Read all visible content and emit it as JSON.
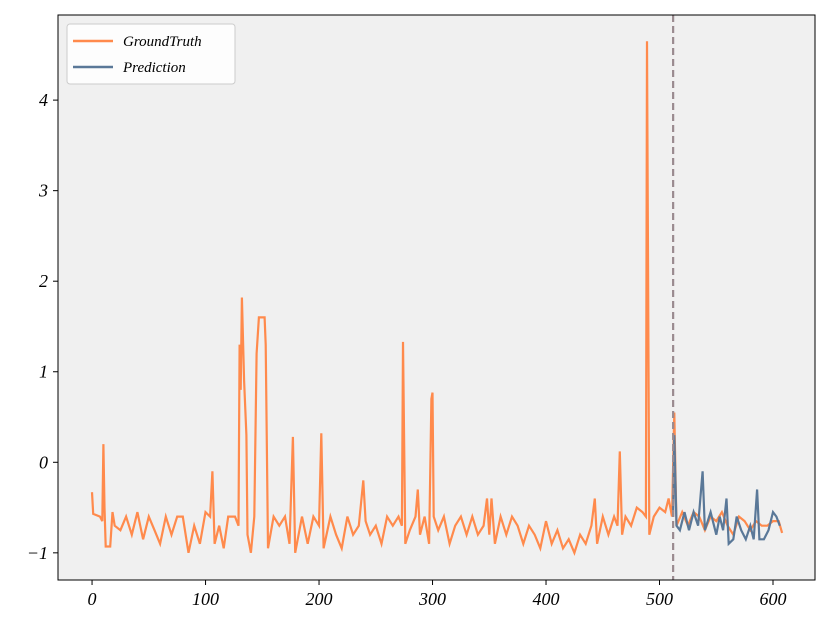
{
  "chart_data": {
    "type": "line",
    "series": [
      {
        "name": "GroundTruth",
        "color": "#ff8a4c",
        "x": [
          0,
          1,
          7,
          9,
          10,
          11,
          12,
          16,
          18,
          20,
          25,
          30,
          35,
          40,
          45,
          50,
          55,
          60,
          65,
          70,
          75,
          80,
          85,
          90,
          95,
          100,
          104,
          106,
          108,
          112,
          116,
          120,
          126,
          129,
          130,
          131,
          132,
          134,
          136,
          137,
          140,
          143,
          145,
          147,
          152,
          153,
          155,
          160,
          165,
          170,
          174,
          177,
          179,
          182,
          185,
          190,
          195,
          200,
          202,
          204,
          210,
          215,
          220,
          225,
          230,
          235,
          239,
          241,
          245,
          250,
          255,
          260,
          265,
          270,
          273,
          274,
          276,
          280,
          285,
          287,
          289,
          293,
          297,
          299,
          300,
          301,
          305,
          310,
          315,
          320,
          325,
          330,
          335,
          340,
          345,
          348,
          350,
          352,
          355,
          360,
          365,
          370,
          375,
          380,
          385,
          390,
          395,
          400,
          405,
          410,
          415,
          420,
          425,
          430,
          435,
          440,
          443,
          445,
          450,
          455,
          460,
          463,
          465,
          467,
          470,
          475,
          480,
          485,
          488,
          489,
          491,
          495,
          500,
          505,
          508,
          511,
          513,
          515,
          520,
          525,
          530,
          535,
          540,
          545,
          550,
          555,
          560,
          565,
          570,
          575,
          580,
          585,
          590,
          595,
          600,
          605,
          608
        ],
        "values": [
          -0.33,
          -0.57,
          -0.6,
          -0.65,
          0.2,
          -0.5,
          -0.93,
          -0.93,
          -0.55,
          -0.7,
          -0.75,
          -0.6,
          -0.8,
          -0.55,
          -0.85,
          -0.6,
          -0.75,
          -0.9,
          -0.6,
          -0.8,
          -0.6,
          -0.6,
          -1.0,
          -0.7,
          -0.9,
          -0.55,
          -0.6,
          -0.1,
          -0.9,
          -0.7,
          -0.95,
          -0.6,
          -0.6,
          -0.7,
          1.3,
          0.8,
          1.82,
          0.9,
          0.3,
          -0.8,
          -1.0,
          -0.6,
          1.2,
          1.6,
          1.6,
          1.3,
          -0.95,
          -0.6,
          -0.7,
          -0.6,
          -0.9,
          0.28,
          -1.0,
          -0.8,
          -0.6,
          -0.9,
          -0.6,
          -0.7,
          0.32,
          -0.95,
          -0.6,
          -0.8,
          -0.95,
          -0.6,
          -0.8,
          -0.7,
          -0.2,
          -0.65,
          -0.8,
          -0.7,
          -0.9,
          -0.6,
          -0.7,
          -0.6,
          -0.7,
          1.33,
          -0.9,
          -0.75,
          -0.6,
          -0.3,
          -0.8,
          -0.6,
          -0.9,
          0.7,
          0.77,
          -0.6,
          -0.75,
          -0.6,
          -0.9,
          -0.7,
          -0.6,
          -0.8,
          -0.6,
          -0.8,
          -0.7,
          -0.4,
          -0.8,
          -0.4,
          -0.9,
          -0.6,
          -0.8,
          -0.6,
          -0.7,
          -0.9,
          -0.7,
          -0.8,
          -0.95,
          -0.65,
          -0.9,
          -0.75,
          -0.95,
          -0.85,
          -1.0,
          -0.8,
          -0.9,
          -0.7,
          -0.4,
          -0.9,
          -0.6,
          -0.8,
          -0.6,
          -0.7,
          0.12,
          -0.8,
          -0.6,
          -0.7,
          -0.5,
          -0.55,
          -0.6,
          4.65,
          -0.8,
          -0.6,
          -0.5,
          -0.55,
          -0.4,
          -0.6,
          0.55,
          -0.7,
          -0.55,
          -0.7,
          -0.55,
          -0.6,
          -0.75,
          -0.6,
          -0.65,
          -0.55,
          -0.7,
          -0.8,
          -0.6,
          -0.65,
          -0.75,
          -0.65,
          -0.7,
          -0.7,
          -0.65,
          -0.65,
          -0.78
        ]
      },
      {
        "name": "Prediction",
        "color": "#5a7898",
        "x": [
          512,
          513,
          515,
          518,
          522,
          526,
          530,
          534,
          538,
          540,
          545,
          550,
          553,
          556,
          559,
          561,
          565,
          568,
          572,
          576,
          580,
          583,
          586,
          588,
          592,
          596,
          600,
          603,
          606
        ],
        "values": [
          -0.6,
          0.3,
          -0.7,
          -0.75,
          -0.55,
          -0.75,
          -0.55,
          -0.7,
          -0.1,
          -0.75,
          -0.55,
          -0.8,
          -0.6,
          -0.75,
          -0.4,
          -0.9,
          -0.85,
          -0.6,
          -0.75,
          -0.85,
          -0.7,
          -0.85,
          -0.3,
          -0.85,
          -0.85,
          -0.75,
          -0.55,
          -0.6,
          -0.7
        ]
      }
    ],
    "vline": 512,
    "vline_color": "#9a8a8f",
    "xlim": [
      -30,
      637
    ],
    "ylim": [
      -1.3,
      4.94
    ],
    "xticks": [
      0,
      100,
      200,
      300,
      400,
      500,
      600
    ],
    "yticks": [
      {
        "value": -1,
        "label": "−1"
      },
      0,
      1,
      2,
      3,
      4
    ],
    "legend": "upper left",
    "background": "#f0f0f0"
  }
}
